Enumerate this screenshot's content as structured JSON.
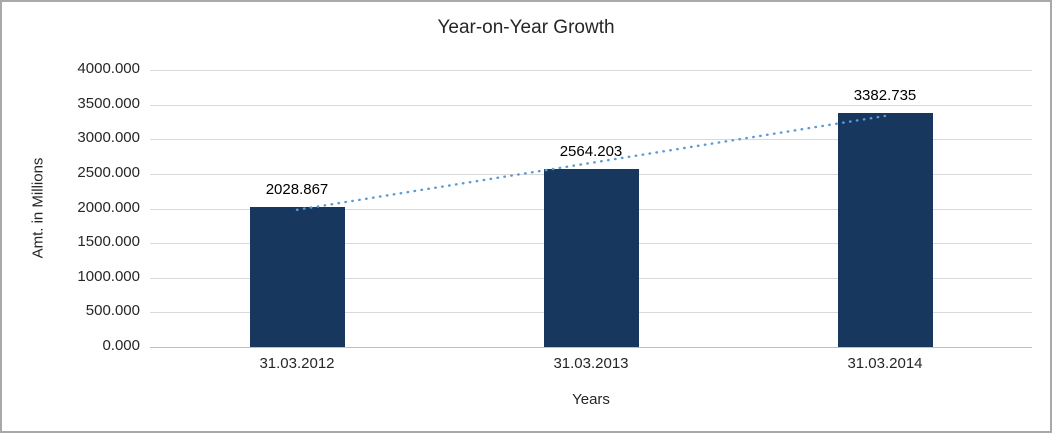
{
  "chart_data": {
    "type": "bar",
    "title": "Year-on-Year Growth",
    "xlabel": "Years",
    "ylabel": "Amt. in Millions",
    "categories": [
      "31.03.2012",
      "31.03.2013",
      "31.03.2014"
    ],
    "values": [
      2028.867,
      2564.203,
      3382.735
    ],
    "value_labels": [
      "2028.867",
      "2564.203",
      "3382.735"
    ],
    "ylim": [
      0,
      4000
    ],
    "ytick_step": 500,
    "ytick_labels": [
      "0.000",
      "500.000",
      "1000.000",
      "1500.000",
      "2000.000",
      "2500.000",
      "3000.000",
      "3500.000",
      "4000.000"
    ],
    "grid": true,
    "legend": "none",
    "trendline": {
      "type": "linear",
      "style": "dotted",
      "color": "#5b9bd5"
    },
    "colors": {
      "bar": "#17375e",
      "grid": "#d9d9d9",
      "axis": "#bfbfbf",
      "text": "#262626"
    }
  }
}
